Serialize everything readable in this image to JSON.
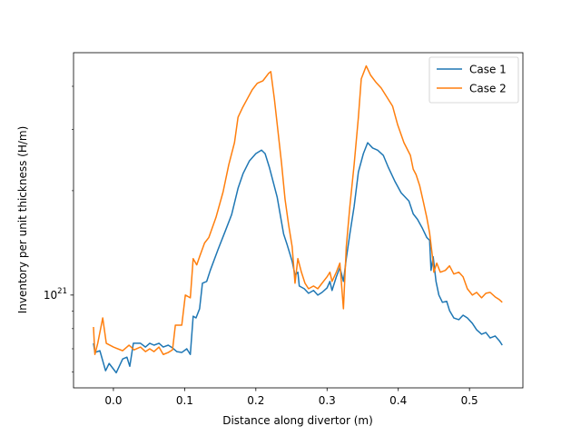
{
  "chart_data": {
    "type": "line",
    "xlabel": "Distance along divertor (m)",
    "ylabel": "Inventory per unit thickness (H/m)",
    "xlim": [
      -0.056,
      0.575
    ],
    "xticks": [
      {
        "value": 0,
        "label": "0.0"
      },
      0.1,
      0.2,
      0.3,
      0.4,
      0.5
    ],
    "ylim": [
      5.4e+20,
      5e+21
    ],
    "yscale": "log",
    "yticks": [
      {
        "value": 1e+21,
        "label": "10^21"
      }
    ],
    "yminorticks": [
      6e+20,
      7e+20,
      8e+20,
      9e+20,
      2e+21,
      3e+21,
      4e+21
    ],
    "legend": "upper right",
    "series": [
      {
        "name": "Case 1",
        "color": "#1f77b4",
        "x": [
          -0.028,
          -0.026,
          -0.019,
          -0.011,
          -0.006,
          0.004,
          0.013,
          0.019,
          0.023,
          0.028,
          0.038,
          0.045,
          0.051,
          0.057,
          0.064,
          0.07,
          0.077,
          0.083,
          0.089,
          0.096,
          0.103,
          0.108,
          0.112,
          0.116,
          0.121,
          0.125,
          0.131,
          0.136,
          0.147,
          0.157,
          0.166,
          0.175,
          0.182,
          0.191,
          0.2,
          0.208,
          0.213,
          0.219,
          0.23,
          0.239,
          0.244,
          0.251,
          0.255,
          0.259,
          0.261,
          0.268,
          0.274,
          0.281,
          0.287,
          0.293,
          0.3,
          0.304,
          0.307,
          0.313,
          0.318,
          0.323,
          0.327,
          0.332,
          0.338,
          0.344,
          0.351,
          0.357,
          0.364,
          0.371,
          0.379,
          0.386,
          0.395,
          0.404,
          0.415,
          0.421,
          0.427,
          0.434,
          0.44,
          0.444,
          0.446,
          0.449,
          0.453,
          0.457,
          0.462,
          0.468,
          0.472,
          0.478,
          0.485,
          0.491,
          0.497,
          0.504,
          0.51,
          0.517,
          0.523,
          0.529,
          0.536,
          0.542,
          0.546
        ],
        "values": [
          7.26e+20,
          6.83e+20,
          6.91e+20,
          6.05e+20,
          6.35e+20,
          5.97e+20,
          6.54e+20,
          6.62e+20,
          6.23e+20,
          7.26e+20,
          7.26e+20,
          7.08e+20,
          7.26e+20,
          7.17e+20,
          7.26e+20,
          7.08e+20,
          7.17e+20,
          7.04e+20,
          6.87e+20,
          6.83e+20,
          7e+20,
          6.74e+20,
          8.69e+20,
          8.59e+20,
          9.13e+20,
          1.082e+21,
          1.095e+21,
          1.178e+21,
          1.355e+21,
          1.528e+21,
          1.706e+21,
          2.032e+21,
          2.239e+21,
          2.438e+21,
          2.558e+21,
          2.618e+21,
          2.558e+21,
          2.335e+21,
          1.914e+21,
          1.5e+21,
          1.396e+21,
          1.251e+21,
          1.142e+21,
          1.164e+21,
          1.062e+21,
          1.043e+21,
          1.012e+21,
          1.031e+21,
          1e+21,
          1.018e+21,
          1.049e+21,
          1.095e+21,
          1.031e+21,
          1.129e+21,
          1.2e+21,
          1.095e+21,
          1.274e+21,
          1.5e+21,
          1.8e+21,
          2.265e+21,
          2.558e+21,
          2.75e+21,
          2.655e+21,
          2.618e+21,
          2.529e+21,
          2.335e+21,
          2.133e+21,
          1.972e+21,
          1.866e+21,
          1.714e+21,
          1.653e+21,
          1.556e+21,
          1.466e+21,
          1.439e+21,
          1.178e+21,
          1.29e+21,
          1.095e+21,
          1e+21,
          9.53e+20,
          9.59e+20,
          9.02e+20,
          8.59e+20,
          8.49e+20,
          8.75e+20,
          8.59e+20,
          8.29e+20,
          7.94e+20,
          7.71e+20,
          7.8e+20,
          7.52e+20,
          7.62e+20,
          7.38e+20,
          7.17e+20
        ]
      },
      {
        "name": "Case 2",
        "color": "#ff7f0e",
        "x": [
          -0.028,
          -0.026,
          -0.022,
          -0.015,
          -0.01,
          0.0,
          0.013,
          0.022,
          0.029,
          0.038,
          0.045,
          0.051,
          0.057,
          0.064,
          0.07,
          0.077,
          0.083,
          0.087,
          0.096,
          0.101,
          0.108,
          0.112,
          0.117,
          0.121,
          0.128,
          0.134,
          0.144,
          0.154,
          0.162,
          0.17,
          0.175,
          0.181,
          0.188,
          0.195,
          0.202,
          0.21,
          0.218,
          0.221,
          0.226,
          0.231,
          0.236,
          0.241,
          0.246,
          0.251,
          0.255,
          0.259,
          0.264,
          0.269,
          0.274,
          0.281,
          0.287,
          0.293,
          0.3,
          0.304,
          0.307,
          0.313,
          0.318,
          0.323,
          0.327,
          0.332,
          0.338,
          0.344,
          0.348,
          0.355,
          0.361,
          0.369,
          0.376,
          0.384,
          0.392,
          0.399,
          0.408,
          0.417,
          0.421,
          0.425,
          0.43,
          0.435,
          0.44,
          0.444,
          0.448,
          0.45,
          0.454,
          0.459,
          0.466,
          0.472,
          0.478,
          0.485,
          0.491,
          0.497,
          0.504,
          0.51,
          0.517,
          0.523,
          0.529,
          0.536,
          0.542,
          0.546
        ],
        "values": [
          8.09e+20,
          6.74e+20,
          7.26e+20,
          8.59e+20,
          7.26e+20,
          7.08e+20,
          6.91e+20,
          7.17e+20,
          6.95e+20,
          7.08e+20,
          6.87e+20,
          7e+20,
          6.87e+20,
          7.08e+20,
          6.74e+20,
          6.83e+20,
          6.95e+20,
          8.19e+20,
          8.19e+20,
          1e+21,
          9.82e+20,
          1.274e+21,
          1.222e+21,
          1.29e+21,
          1.413e+21,
          1.466e+21,
          1.674e+21,
          1.984e+21,
          2.377e+21,
          2.75e+21,
          3.258e+21,
          3.46e+21,
          3.68e+21,
          3.91e+21,
          4.08e+21,
          4.15e+21,
          4.36e+21,
          4.41e+21,
          3.68e+21,
          2.978e+21,
          2.41e+21,
          1.89e+21,
          1.595e+21,
          1.378e+21,
          1.082e+21,
          1.274e+21,
          1.164e+21,
          1.082e+21,
          1.043e+21,
          1.062e+21,
          1.043e+21,
          1.082e+21,
          1.129e+21,
          1.164e+21,
          1.095e+21,
          1.164e+21,
          1.236e+21,
          9.13e+20,
          1.378e+21,
          1.8e+21,
          2.377e+21,
          3.258e+21,
          4.2e+21,
          4.58e+21,
          4.31e+21,
          4.1e+21,
          3.955e+21,
          3.724e+21,
          3.506e+21,
          3.105e+21,
          2.75e+21,
          2.529e+21,
          2.307e+21,
          2.225e+21,
          2.07e+21,
          1.866e+21,
          1.674e+21,
          1.51e+21,
          1.29e+21,
          1.164e+21,
          1.236e+21,
          1.164e+21,
          1.178e+21,
          1.214e+21,
          1.15e+21,
          1.164e+21,
          1.129e+21,
          1.043e+21,
          1e+21,
          1.018e+21,
          9.82e+20,
          1.012e+21,
          1.018e+21,
          9.88e+20,
          9.7e+20,
          9.53e+20
        ]
      }
    ]
  }
}
